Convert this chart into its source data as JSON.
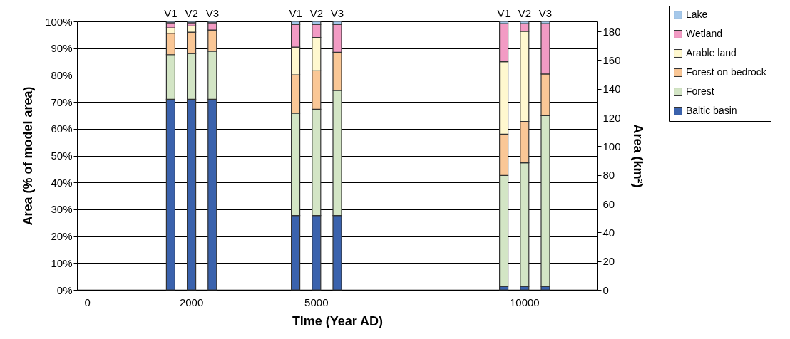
{
  "chart_data": {
    "type": "bar",
    "stacked": true,
    "xlabel": "Time (Year AD)",
    "ylabel": "Area (% of model area)",
    "y2label": "Area (km²)",
    "categories": [
      null,
      null,
      null,
      null,
      "V1",
      "V2",
      "V3",
      null,
      null,
      null,
      "V1",
      "V2",
      "V3",
      null,
      null,
      null,
      null,
      null,
      null,
      null,
      "V1",
      "V2",
      "V3",
      null,
      null
    ],
    "annotations": [
      "0",
      "2000",
      "5000",
      "10000"
    ],
    "series": [
      {
        "name": "Baltic basin",
        "color": "#3a62ad",
        "values": [
          null,
          null,
          null,
          null,
          71,
          71,
          71,
          null,
          null,
          null,
          27.7,
          27.7,
          27.7,
          null,
          null,
          null,
          null,
          null,
          null,
          null,
          1.3,
          1.3,
          1.3,
          null,
          null
        ]
      },
      {
        "name": "Forest",
        "color": "#d3e5c5",
        "values": [
          null,
          null,
          null,
          null,
          16.6,
          17,
          17.9,
          null,
          null,
          null,
          38.1,
          39.6,
          46.6,
          null,
          null,
          null,
          null,
          null,
          null,
          null,
          41.3,
          46,
          63.6,
          null,
          null
        ]
      },
      {
        "name": "Forest on bedrock",
        "color": "#fac796",
        "values": [
          null,
          null,
          null,
          null,
          8,
          8,
          7.9,
          null,
          null,
          null,
          14.3,
          14.3,
          14.2,
          null,
          null,
          null,
          null,
          null,
          null,
          null,
          15.4,
          15.4,
          15.5,
          null,
          null
        ]
      },
      {
        "name": "Arable land",
        "color": "#fff8cf",
        "values": [
          null,
          null,
          null,
          null,
          2,
          2.3,
          0,
          null,
          null,
          null,
          10.3,
          12.4,
          0,
          null,
          null,
          null,
          null,
          null,
          null,
          null,
          27,
          33.6,
          0,
          null,
          null
        ]
      },
      {
        "name": "Wetland",
        "color": "#f29bc4",
        "values": [
          null,
          null,
          null,
          null,
          1.9,
          1.2,
          2.7,
          null,
          null,
          null,
          8.5,
          4.9,
          10.4,
          null,
          null,
          null,
          null,
          null,
          null,
          null,
          14.2,
          2.9,
          18.8,
          null,
          null
        ]
      },
      {
        "name": "Lake",
        "color": "#a5c8ea",
        "values": [
          null,
          null,
          null,
          null,
          0.5,
          0.5,
          0.5,
          null,
          null,
          null,
          1.1,
          1.1,
          1.1,
          null,
          null,
          null,
          null,
          null,
          null,
          null,
          0.8,
          0.8,
          0.8,
          null,
          null
        ]
      }
    ],
    "ylim": [
      0,
      100
    ],
    "yticks": [
      {
        "value": 0,
        "label": "0%"
      },
      {
        "value": 10,
        "label": "10%"
      },
      {
        "value": 20,
        "label": "20%"
      },
      {
        "value": 30,
        "label": "30%"
      },
      {
        "value": 40,
        "label": "40%"
      },
      {
        "value": 50,
        "label": "50%"
      },
      {
        "value": 60,
        "label": "60%"
      },
      {
        "value": 70,
        "label": "70%"
      },
      {
        "value": 80,
        "label": "80%"
      },
      {
        "value": 90,
        "label": "90%"
      },
      {
        "value": 100,
        "label": "100%"
      }
    ],
    "y2lim": [
      0,
      187
    ],
    "y2ticks": [
      0,
      20,
      40,
      60,
      80,
      100,
      120,
      140,
      160,
      180
    ],
    "grid": "y",
    "legend": "right"
  }
}
